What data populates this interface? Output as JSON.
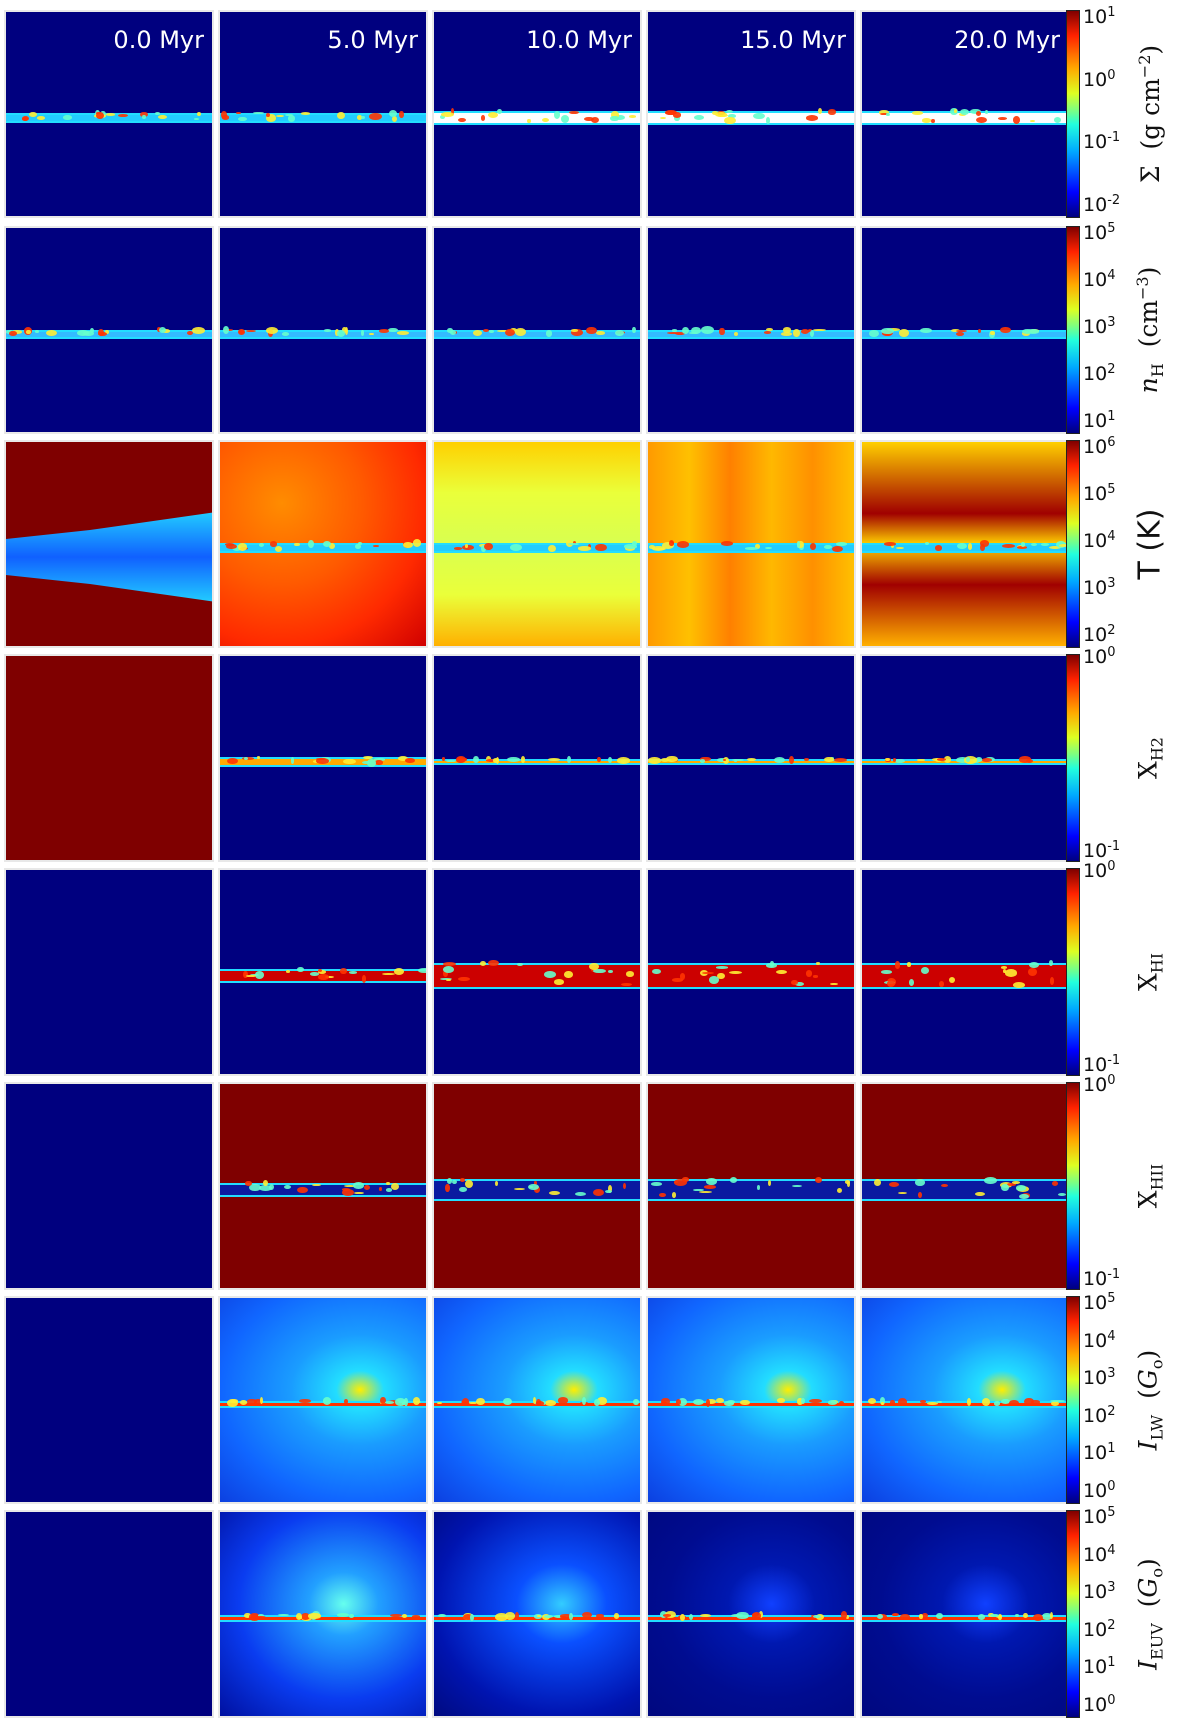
{
  "times": [
    "0.0 Myr",
    "5.0 Myr",
    "10.0 Myr",
    "15.0 Myr",
    "20.0 Myr"
  ],
  "rows": [
    {
      "id": "sigma",
      "label_html": "Σ &nbsp;(g cm<sup>−2</sup>)",
      "ticks": [
        "10<sup>1</sup>",
        "10<sup>0</sup>",
        "10<sup>-1</sup>",
        "10<sup>-2</sup>"
      ]
    },
    {
      "id": "nh",
      "label_html": "<i>n</i><sub>H</sub> &nbsp;(cm<sup>−3</sup>)",
      "ticks": [
        "10<sup>5</sup>",
        "10<sup>4</sup>",
        "10<sup>3</sup>",
        "10<sup>2</sup>",
        "10<sup>1</sup>"
      ]
    },
    {
      "id": "temp",
      "label_html": "<span style='font-family:DejaVu Sans,sans-serif;font-size:30px'>T (K)</span>",
      "ticks": [
        "10<sup>6</sup>",
        "10<sup>5</sup>",
        "10<sup>4</sup>",
        "10<sup>3</sup>",
        "10<sup>2</sup>"
      ]
    },
    {
      "id": "xh2",
      "label_html": "X<sub>H2</sub>",
      "ticks": [
        "10<sup>0</sup>",
        "10<sup>-1</sup>"
      ]
    },
    {
      "id": "xhi",
      "label_html": "X<sub>HI</sub>",
      "ticks": [
        "10<sup>0</sup>",
        "10<sup>-1</sup>"
      ]
    },
    {
      "id": "xhii",
      "label_html": "X<sub>HII</sub>",
      "ticks": [
        "10<sup>0</sup>",
        "10<sup>-1</sup>"
      ]
    },
    {
      "id": "ilw",
      "label_html": "<i>I</i><sub>LW</sub> &nbsp;(<i>G</i><sub>o</sub>)",
      "ticks": [
        "10<sup>5</sup>",
        "10<sup>4</sup>",
        "10<sup>3</sup>",
        "10<sup>2</sup>",
        "10<sup>1</sup>",
        "10<sup>0</sup>"
      ]
    },
    {
      "id": "ieuv",
      "label_html": "<i>I</i><sub>EUV</sub> &nbsp;(<i>G</i><sub>o</sub>)",
      "ticks": [
        "10<sup>5</sup>",
        "10<sup>4</sup>",
        "10<sup>3</sup>",
        "10<sup>2</sup>",
        "10<sup>1</sup>",
        "10<sup>0</sup>"
      ]
    }
  ],
  "colors": {
    "jet_dark_blue": "#00007f",
    "jet_dark_red": "#7f0000",
    "disk_cyan": "#33ddff",
    "hot": "#ff4400"
  }
}
